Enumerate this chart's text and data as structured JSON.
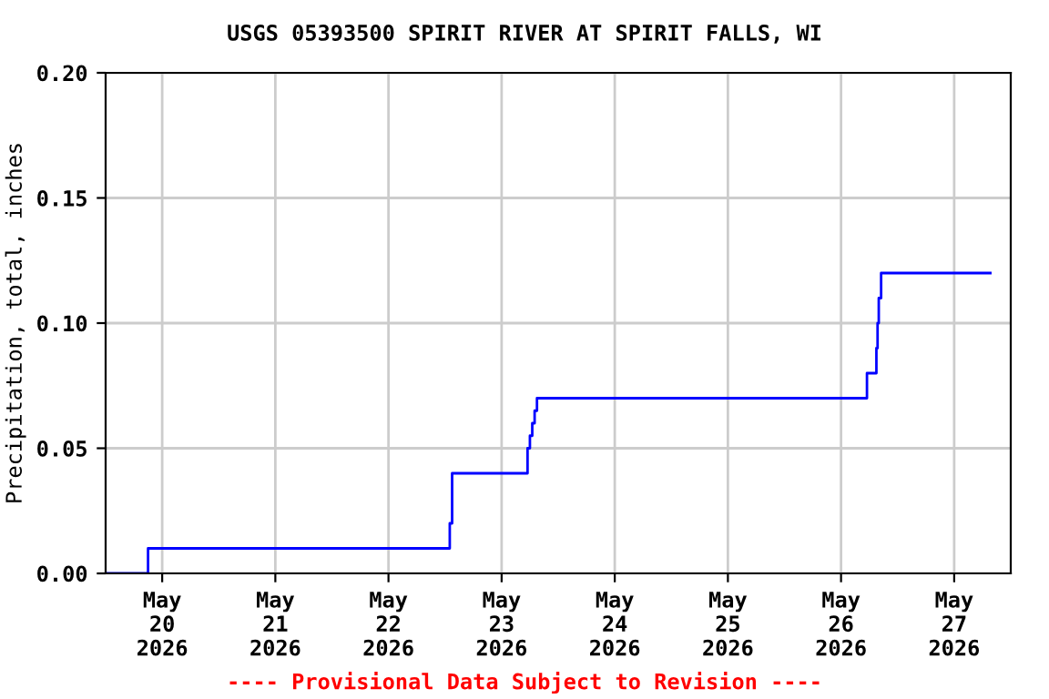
{
  "chart_data": {
    "type": "step",
    "title": "USGS 05393500 SPIRIT RIVER AT SPIRIT FALLS, WI",
    "ylabel": "Precipitation, total, inches",
    "annotations": [
      "---- Provisional Data Subject to Revision ----"
    ],
    "x": [
      "2026-05-19T12:00",
      "2026-05-19T21:00",
      "2026-05-22T13:00",
      "2026-05-22T13:30",
      "2026-05-23T05:30",
      "2026-05-23T06:00",
      "2026-05-23T06:30",
      "2026-05-23T07:00",
      "2026-05-23T07:30",
      "2026-05-26T05:30",
      "2026-05-26T07:30",
      "2026-05-26T07:45",
      "2026-05-26T08:00",
      "2026-05-26T08:30",
      "2026-05-27T07:40"
    ],
    "series": [
      {
        "color": "#0000ff",
        "values": [
          0.0,
          0.01,
          0.02,
          0.04,
          0.05,
          0.055,
          0.06,
          0.065,
          0.07,
          0.08,
          0.09,
          0.1,
          0.11,
          0.12,
          0.12
        ]
      }
    ],
    "xlim": [
      "2026-05-19T12:00",
      "2026-05-27T12:00"
    ],
    "xticks": [
      {
        "value": "2026-05-20",
        "label": "May\n20\n2026"
      },
      {
        "value": "2026-05-21",
        "label": "May\n21\n2026"
      },
      {
        "value": "2026-05-22",
        "label": "May\n22\n2026"
      },
      {
        "value": "2026-05-23",
        "label": "May\n23\n2026"
      },
      {
        "value": "2026-05-24",
        "label": "May\n24\n2026"
      },
      {
        "value": "2026-05-25",
        "label": "May\n25\n2026"
      },
      {
        "value": "2026-05-26",
        "label": "May\n26\n2026"
      },
      {
        "value": "2026-05-27",
        "label": "May\n27\n2026"
      }
    ],
    "ylim": [
      0,
      0.2
    ],
    "yticks": [
      {
        "value": 0,
        "label": "0.00"
      },
      {
        "value": 0.05,
        "label": "0.05"
      },
      {
        "value": 0.1,
        "label": "0.10"
      },
      {
        "value": 0.15,
        "label": "0.15"
      },
      {
        "value": 0.2,
        "label": "0.20"
      }
    ],
    "grid": true
  }
}
